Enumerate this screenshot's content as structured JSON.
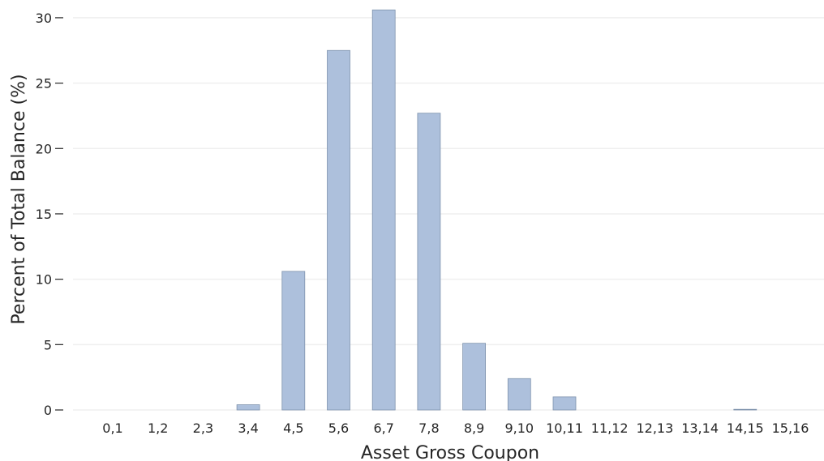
{
  "chart_data": {
    "type": "bar",
    "title": "",
    "xlabel": "Asset Gross Coupon",
    "ylabel": "Percent of Total Balance (%)",
    "categories": [
      "0,1",
      "1,2",
      "2,3",
      "3,4",
      "4,5",
      "5,6",
      "6,7",
      "7,8",
      "8,9",
      "9,10",
      "10,11",
      "11,12",
      "12,13",
      "13,14",
      "14,15",
      "15,16"
    ],
    "values": [
      0,
      0,
      0,
      0.4,
      10.6,
      27.5,
      30.6,
      22.7,
      5.1,
      2.4,
      1.0,
      0,
      0,
      0,
      0.05,
      0
    ],
    "yticks": [
      0,
      5,
      10,
      15,
      20,
      25,
      30
    ],
    "ylim": [
      0,
      30.8
    ],
    "grid": "horizontal",
    "bar_color": "#adc0dc"
  }
}
